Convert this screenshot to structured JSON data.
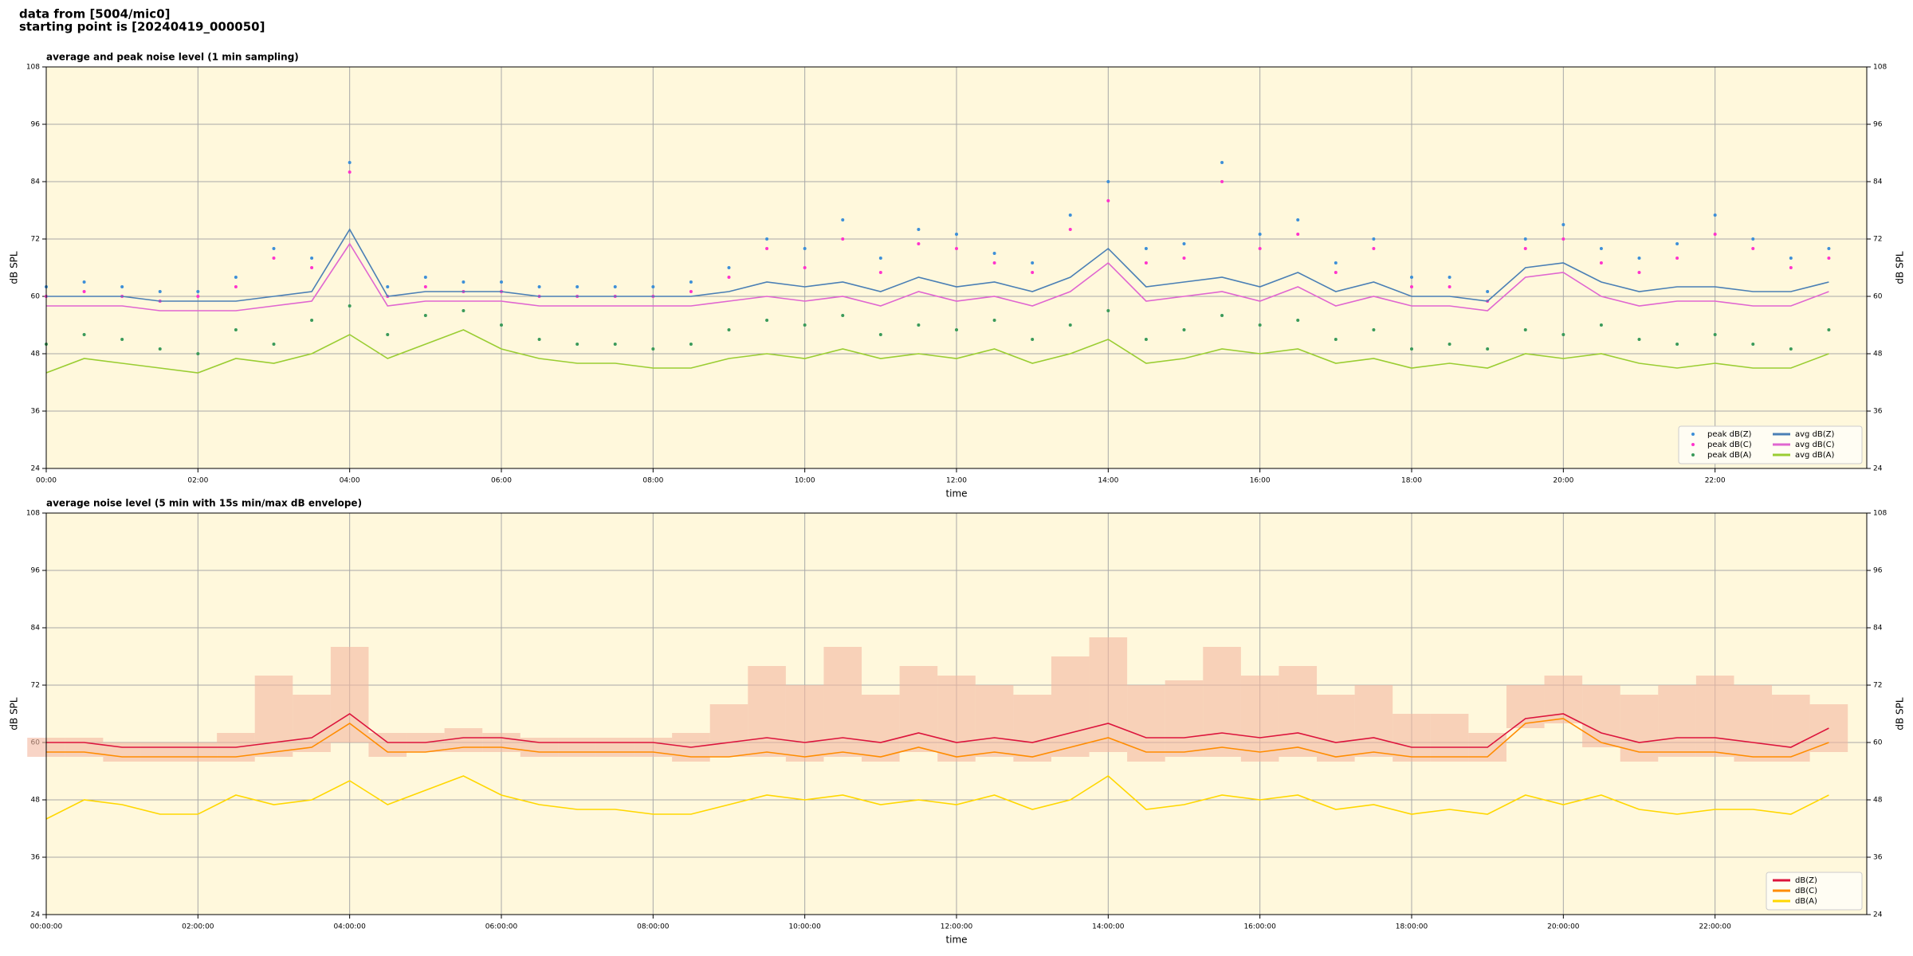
{
  "header": {
    "line1": "data from [5004/mic0]",
    "line2": "starting point is [20240419_000050]"
  },
  "chart_data": [
    {
      "type": "line",
      "title": "average and peak noise level (1 min sampling)",
      "x_label": "time",
      "y_label": "dB SPL",
      "x": [
        0,
        0.5,
        1,
        1.5,
        2,
        2.5,
        3,
        3.5,
        4,
        4.5,
        5,
        5.5,
        6,
        6.5,
        7,
        7.5,
        8,
        8.5,
        9,
        9.5,
        10,
        10.5,
        11,
        11.5,
        12,
        12.5,
        13,
        13.5,
        14,
        14.5,
        15,
        15.5,
        16,
        16.5,
        17,
        17.5,
        18,
        18.5,
        19,
        19.5,
        20,
        20.5,
        21,
        21.5,
        22,
        22.5,
        23,
        23.5
      ],
      "xlim": [
        0,
        24
      ],
      "ylim": [
        24,
        108
      ],
      "yticks": [
        24,
        36,
        48,
        60,
        72,
        84,
        96,
        108
      ],
      "xticks": [
        {
          "value": 0,
          "label": "00:00"
        },
        {
          "value": 2,
          "label": "02:00"
        },
        {
          "value": 4,
          "label": "04:00"
        },
        {
          "value": 6,
          "label": "06:00"
        },
        {
          "value": 8,
          "label": "08:00"
        },
        {
          "value": 10,
          "label": "10:00"
        },
        {
          "value": 12,
          "label": "12:00"
        },
        {
          "value": 14,
          "label": "14:00"
        },
        {
          "value": 16,
          "label": "16:00"
        },
        {
          "value": 18,
          "label": "18:00"
        },
        {
          "value": 20,
          "label": "20:00"
        },
        {
          "value": 22,
          "label": "22:00"
        }
      ],
      "grid": true,
      "legend": "lower right",
      "legend_columns": 2,
      "series": [
        {
          "name": "peak dB(Z)",
          "type": "scatter",
          "color": "#3d8fd8",
          "values": [
            62,
            63,
            62,
            61,
            61,
            64,
            70,
            68,
            88,
            62,
            64,
            63,
            63,
            62,
            62,
            62,
            62,
            63,
            66,
            72,
            70,
            76,
            68,
            74,
            73,
            69,
            67,
            77,
            84,
            70,
            71,
            88,
            73,
            76,
            67,
            72,
            64,
            64,
            61,
            72,
            75,
            70,
            68,
            71,
            77,
            72,
            68,
            70
          ]
        },
        {
          "name": "peak dB(C)",
          "type": "scatter",
          "color": "#ff33cc",
          "values": [
            60,
            61,
            60,
            59,
            60,
            62,
            68,
            66,
            86,
            60,
            62,
            61,
            61,
            60,
            60,
            60,
            60,
            61,
            64,
            70,
            66,
            72,
            65,
            71,
            70,
            67,
            65,
            74,
            80,
            67,
            68,
            84,
            70,
            73,
            65,
            70,
            62,
            62,
            59,
            70,
            72,
            67,
            65,
            68,
            73,
            70,
            66,
            68
          ]
        },
        {
          "name": "peak dB(A)",
          "type": "scatter",
          "color": "#3a9a5a",
          "values": [
            50,
            52,
            51,
            49,
            48,
            53,
            50,
            55,
            58,
            52,
            56,
            57,
            54,
            51,
            50,
            50,
            49,
            50,
            53,
            55,
            54,
            56,
            52,
            54,
            53,
            55,
            51,
            54,
            57,
            51,
            53,
            56,
            54,
            55,
            51,
            53,
            49,
            50,
            49,
            53,
            52,
            54,
            51,
            50,
            52,
            50,
            49,
            53
          ]
        },
        {
          "name": "avg dB(Z)",
          "type": "line",
          "color": "#4a7fb5",
          "values": [
            60,
            60,
            60,
            59,
            59,
            59,
            60,
            61,
            74,
            60,
            61,
            61,
            61,
            60,
            60,
            60,
            60,
            60,
            61,
            63,
            62,
            63,
            61,
            64,
            62,
            63,
            61,
            64,
            70,
            62,
            63,
            64,
            62,
            65,
            61,
            63,
            60,
            60,
            59,
            66,
            67,
            63,
            61,
            62,
            62,
            61,
            61,
            63
          ]
        },
        {
          "name": "avg dB(C)",
          "type": "line",
          "color": "#e066d0",
          "values": [
            58,
            58,
            58,
            57,
            57,
            57,
            58,
            59,
            71,
            58,
            59,
            59,
            59,
            58,
            58,
            58,
            58,
            58,
            59,
            60,
            59,
            60,
            58,
            61,
            59,
            60,
            58,
            61,
            67,
            59,
            60,
            61,
            59,
            62,
            58,
            60,
            58,
            58,
            57,
            64,
            65,
            60,
            58,
            59,
            59,
            58,
            58,
            61
          ]
        },
        {
          "name": "avg dB(A)",
          "type": "line",
          "color": "#9acd32",
          "values": [
            44,
            47,
            46,
            45,
            44,
            47,
            46,
            48,
            52,
            47,
            50,
            53,
            49,
            47,
            46,
            46,
            45,
            45,
            47,
            48,
            47,
            49,
            47,
            48,
            47,
            49,
            46,
            48,
            51,
            46,
            47,
            49,
            48,
            49,
            46,
            47,
            45,
            46,
            45,
            48,
            47,
            48,
            46,
            45,
            46,
            45,
            45,
            48
          ]
        }
      ]
    },
    {
      "type": "line",
      "title": "average noise level (5 min with 15s min/max dB envelope)",
      "x_label": "time",
      "y_label": "dB SPL",
      "x": [
        0,
        0.5,
        1,
        1.5,
        2,
        2.5,
        3,
        3.5,
        4,
        4.5,
        5,
        5.5,
        6,
        6.5,
        7,
        7.5,
        8,
        8.5,
        9,
        9.5,
        10,
        10.5,
        11,
        11.5,
        12,
        12.5,
        13,
        13.5,
        14,
        14.5,
        15,
        15.5,
        16,
        16.5,
        17,
        17.5,
        18,
        18.5,
        19,
        19.5,
        20,
        20.5,
        21,
        21.5,
        22,
        22.5,
        23,
        23.5
      ],
      "xlim": [
        0,
        24
      ],
      "ylim": [
        24,
        108
      ],
      "yticks": [
        24,
        36,
        48,
        60,
        72,
        84,
        96,
        108
      ],
      "xticks": [
        {
          "value": 0,
          "label": "00:00:00"
        },
        {
          "value": 2,
          "label": "02:00:00"
        },
        {
          "value": 4,
          "label": "04:00:00"
        },
        {
          "value": 6,
          "label": "06:00:00"
        },
        {
          "value": 8,
          "label": "08:00:00"
        },
        {
          "value": 10,
          "label": "10:00:00"
        },
        {
          "value": 12,
          "label": "12:00:00"
        },
        {
          "value": 14,
          "label": "14:00:00"
        },
        {
          "value": 16,
          "label": "16:00:00"
        },
        {
          "value": 18,
          "label": "18:00:00"
        },
        {
          "value": 20,
          "label": "20:00:00"
        },
        {
          "value": 22,
          "label": "22:00:00"
        }
      ],
      "grid": true,
      "legend": "lower right",
      "legend_columns": 1,
      "envelope": {
        "color": "#f3b8a0",
        "low": [
          57,
          57,
          56,
          56,
          56,
          56,
          57,
          58,
          60,
          57,
          58,
          58,
          58,
          57,
          57,
          57,
          57,
          56,
          57,
          57,
          56,
          57,
          56,
          58,
          56,
          57,
          56,
          57,
          58,
          56,
          57,
          57,
          56,
          57,
          56,
          57,
          56,
          56,
          56,
          63,
          64,
          59,
          56,
          57,
          57,
          56,
          56,
          58
        ],
        "high": [
          61,
          61,
          60,
          60,
          60,
          62,
          74,
          70,
          80,
          62,
          62,
          63,
          62,
          61,
          61,
          61,
          61,
          62,
          68,
          76,
          72,
          80,
          70,
          76,
          74,
          72,
          70,
          78,
          82,
          72,
          73,
          80,
          74,
          76,
          70,
          72,
          66,
          66,
          62,
          72,
          74,
          72,
          70,
          72,
          74,
          72,
          70,
          68
        ]
      },
      "series": [
        {
          "name": "dB(Z)",
          "type": "line",
          "color": "#dc143c",
          "values": [
            60,
            60,
            59,
            59,
            59,
            59,
            60,
            61,
            66,
            60,
            60,
            61,
            61,
            60,
            60,
            60,
            60,
            59,
            60,
            61,
            60,
            61,
            60,
            62,
            60,
            61,
            60,
            62,
            64,
            61,
            61,
            62,
            61,
            62,
            60,
            61,
            59,
            59,
            59,
            65,
            66,
            62,
            60,
            61,
            61,
            60,
            59,
            63
          ]
        },
        {
          "name": "dB(C)",
          "type": "line",
          "color": "#ff8c00",
          "values": [
            58,
            58,
            57,
            57,
            57,
            57,
            58,
            59,
            64,
            58,
            58,
            59,
            59,
            58,
            58,
            58,
            58,
            57,
            57,
            58,
            57,
            58,
            57,
            59,
            57,
            58,
            57,
            59,
            61,
            58,
            58,
            59,
            58,
            59,
            57,
            58,
            57,
            57,
            57,
            64,
            65,
            60,
            58,
            58,
            58,
            57,
            57,
            60
          ]
        },
        {
          "name": "dB(A)",
          "type": "line",
          "color": "#ffd700",
          "values": [
            44,
            48,
            47,
            45,
            45,
            49,
            47,
            48,
            52,
            47,
            50,
            53,
            49,
            47,
            46,
            46,
            45,
            45,
            47,
            49,
            48,
            49,
            47,
            48,
            47,
            49,
            46,
            48,
            53,
            46,
            47,
            49,
            48,
            49,
            46,
            47,
            45,
            46,
            45,
            49,
            47,
            49,
            46,
            45,
            46,
            46,
            45,
            49
          ]
        }
      ]
    }
  ]
}
